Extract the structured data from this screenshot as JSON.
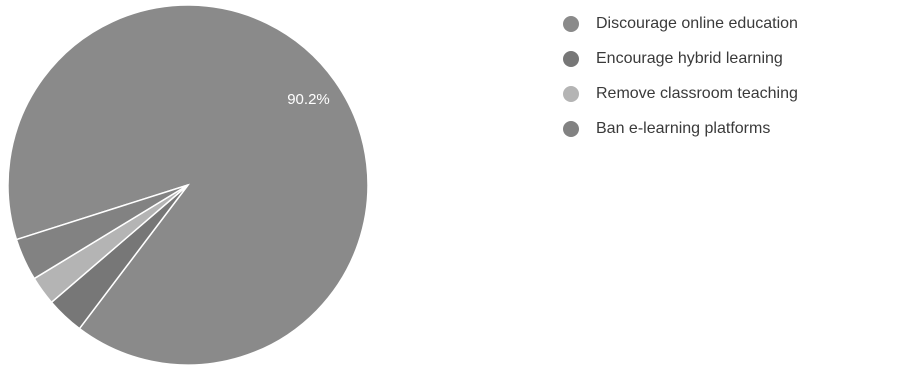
{
  "chart_data": {
    "type": "pie",
    "slices": [
      {
        "label": "Discourage online education",
        "value": 90.2,
        "color": "#8a8a8a",
        "display": "90.2%"
      },
      {
        "label": "Encourage hybrid learning",
        "value": 3.4,
        "color": "#777777",
        "display": ""
      },
      {
        "label": "Remove classroom teaching",
        "value": 2.6,
        "color": "#b4b4b4",
        "display": ""
      },
      {
        "label": "Ban e-learning platforms",
        "value": 3.8,
        "color": "#828282",
        "display": ""
      }
    ],
    "legend_position": "top-right"
  }
}
